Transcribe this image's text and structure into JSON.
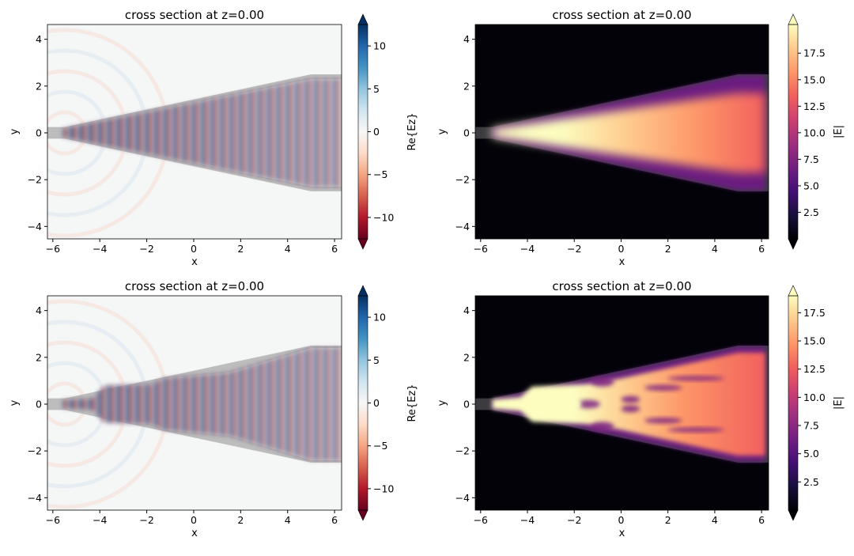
{
  "chart_data": [
    {
      "type": "heatmap",
      "title": "cross section at z=0.00",
      "xlabel": "x",
      "ylabel": "y",
      "xlim": [
        -6.23,
        6.3
      ],
      "ylim": [
        -4.53,
        4.63
      ],
      "xticks": [
        -6,
        -4,
        -2,
        0,
        2,
        4,
        6
      ],
      "yticks": [
        -4,
        -2,
        0,
        2,
        4
      ],
      "field": "real",
      "colorbar": {
        "label": "Re{Ez}",
        "colormap": "RdBu",
        "range": [
          -12.5,
          12.5
        ],
        "ticks": [
          -10,
          -5,
          0,
          5,
          10
        ],
        "tick_labels": [
          "−10",
          "−5",
          "0",
          "5",
          "10"
        ],
        "extend": "both"
      }
    },
    {
      "type": "heatmap",
      "title": "cross section at z=0.00",
      "xlabel": "x",
      "ylabel": "y",
      "xlim": [
        -6.23,
        6.3
      ],
      "ylim": [
        -4.53,
        4.63
      ],
      "xticks": [
        -6,
        -4,
        -2,
        0,
        2,
        4,
        6
      ],
      "yticks": [
        -4,
        -2,
        0,
        2,
        4
      ],
      "field": "abs",
      "colorbar": {
        "label": "|E|",
        "colormap": "magma",
        "range": [
          0,
          20.2
        ],
        "ticks": [
          2.5,
          5,
          7.5,
          10,
          12.5,
          15,
          17.5
        ],
        "tick_labels": [
          "2.5",
          "5.0",
          "7.5",
          "10.0",
          "12.5",
          "15.0",
          "17.5"
        ],
        "extend": "both"
      }
    },
    {
      "type": "heatmap",
      "title": "cross section at z=0.00",
      "xlabel": "x",
      "ylabel": "y",
      "xlim": [
        -6.23,
        6.3
      ],
      "ylim": [
        -4.53,
        4.63
      ],
      "xticks": [
        -6,
        -4,
        -2,
        0,
        2,
        4,
        6
      ],
      "yticks": [
        -4,
        -2,
        0,
        2,
        4
      ],
      "field": "real",
      "colorbar": {
        "label": "Re{Ez}",
        "colormap": "RdBu",
        "range": [
          -12.5,
          12.5
        ],
        "ticks": [
          -10,
          -5,
          0,
          5,
          10
        ],
        "tick_labels": [
          "−10",
          "−5",
          "0",
          "5",
          "10"
        ],
        "extend": "both"
      }
    },
    {
      "type": "heatmap",
      "title": "cross section at z=0.00",
      "xlabel": "x",
      "ylabel": "y",
      "xlim": [
        -6.23,
        6.3
      ],
      "ylim": [
        -4.53,
        4.63
      ],
      "xticks": [
        -6,
        -4,
        -2,
        0,
        2,
        4,
        6
      ],
      "yticks": [
        -4,
        -2,
        0,
        2,
        4
      ],
      "field": "abs-mmi",
      "colorbar": {
        "label": "|E|",
        "colormap": "magma",
        "range": [
          0,
          19
        ],
        "ticks": [
          2.5,
          5,
          7.5,
          10,
          12.5,
          15,
          17.5
        ],
        "tick_labels": [
          "2.5",
          "5.0",
          "7.5",
          "10.0",
          "12.5",
          "15.0",
          "17.5"
        ],
        "extend": "both"
      }
    }
  ],
  "colors": {
    "rdbu": [
      "#67001f",
      "#b2182b",
      "#d6604d",
      "#f4a582",
      "#fddbc7",
      "#f7f7f7",
      "#d1e5f0",
      "#92c5de",
      "#4393c3",
      "#2166ac",
      "#053061"
    ],
    "magma": [
      "#000004",
      "#180f3d",
      "#440f76",
      "#721f81",
      "#9e2f7f",
      "#cd4071",
      "#f1605d",
      "#fd9668",
      "#feca8d",
      "#fcfdbf"
    ],
    "structure": "#bdbdbd"
  }
}
